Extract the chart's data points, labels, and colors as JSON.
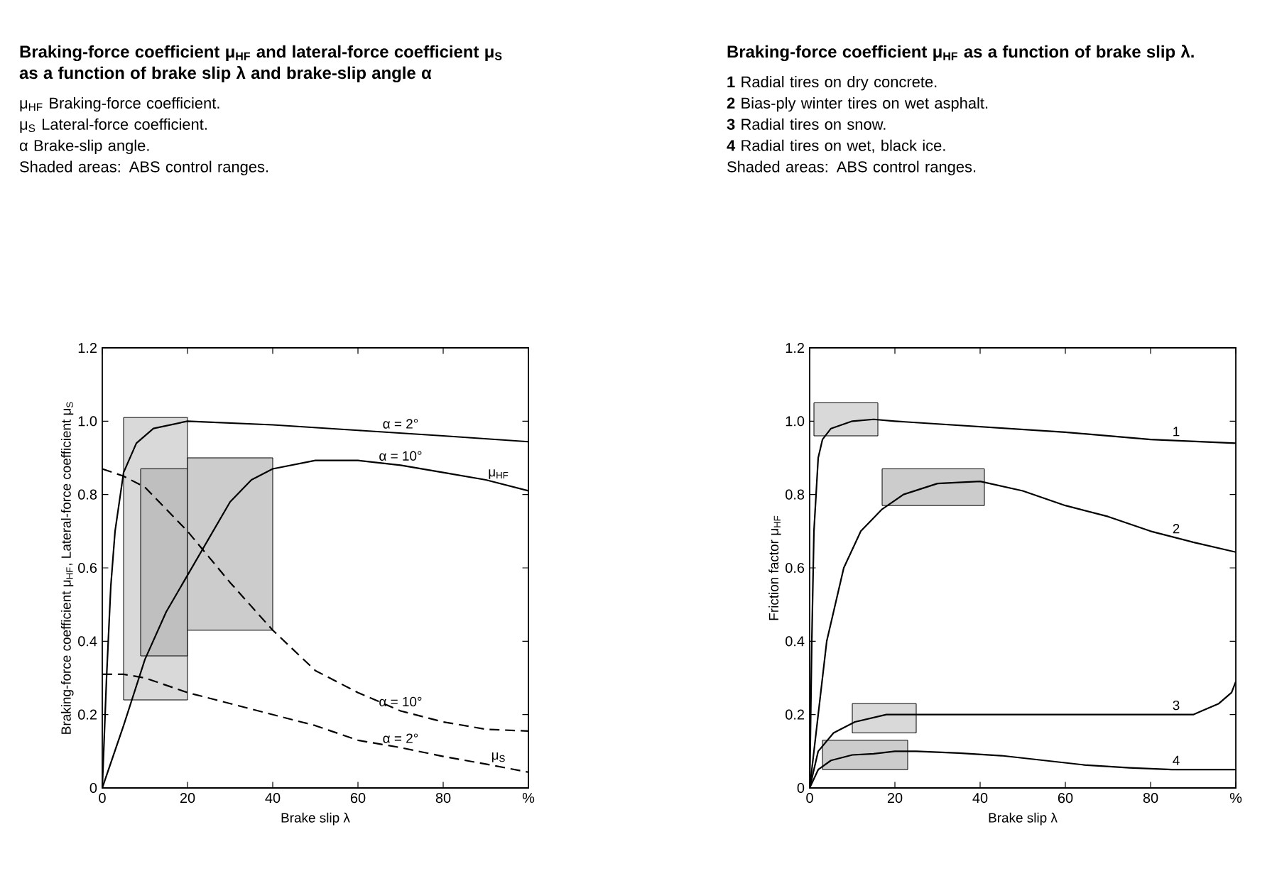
{
  "chart_data": [
    {
      "type": "line",
      "title": "Braking-force coefficient μ$_{HF}$ and lateral-force coefficient μ$_{S}$ as a function of brake slip λ and brake-slip angle α",
      "xlabel": "Brake slip λ",
      "ylabel": "Braking-force coefficient μ$_{HF}$, Lateral-force coefficient μ$_{S}$",
      "xlim": [
        0,
        100
      ],
      "ylim": [
        0,
        1.2
      ],
      "xticks": [
        0,
        20,
        40,
        60,
        80,
        {
          "value": 100,
          "label": "%"
        }
      ],
      "yticks": [
        0,
        0.2,
        0.4,
        0.6,
        0.8,
        {
          "value": 1,
          "label": "1.0"
        },
        1.2
      ],
      "series": [
        {
          "type": "area",
          "color": "#d9d9d9",
          "x": [
            5,
            20
          ],
          "values": [
            null,
            null
          ],
          "lower": [
            0.24,
            0.24
          ],
          "upper": [
            1.01,
            1.01
          ]
        },
        {
          "type": "area",
          "color": "#bfbfbf",
          "x": [
            9,
            20
          ],
          "values": [
            null,
            null
          ],
          "lower": [
            0.36,
            0.36
          ],
          "upper": [
            0.87,
            0.87
          ]
        },
        {
          "type": "area",
          "color": "#cccccc",
          "x": [
            20,
            40
          ],
          "values": [
            null,
            null
          ],
          "lower": [
            0.43,
            0.43
          ],
          "upper": [
            0.9,
            0.9
          ]
        },
        {
          "name": "α = 2°",
          "color": "#000000",
          "line_style": "solid",
          "x": [
            0,
            1,
            2,
            3,
            5,
            8,
            12,
            20,
            40,
            60,
            80,
            100
          ],
          "values": [
            0,
            0.3,
            0.55,
            0.7,
            0.86,
            0.94,
            0.98,
            1.0,
            0.99,
            0.975,
            0.96,
            0.944
          ]
        },
        {
          "name": "α = 10°",
          "color": "#000000",
          "line_style": "solid",
          "x": [
            0,
            5,
            10,
            15,
            20,
            25,
            30,
            35,
            40,
            50,
            60,
            70,
            80,
            90,
            100
          ],
          "values": [
            0,
            0.17,
            0.35,
            0.48,
            0.58,
            0.68,
            0.78,
            0.84,
            0.87,
            0.893,
            0.893,
            0.88,
            0.86,
            0.84,
            0.81
          ]
        },
        {
          "name": "α = 10°",
          "color": "#000000",
          "line_style": "dashed",
          "x": [
            0,
            5,
            10,
            20,
            30,
            40,
            50,
            60,
            70,
            80,
            90,
            100
          ],
          "values": [
            0.87,
            0.85,
            0.82,
            0.7,
            0.56,
            0.43,
            0.32,
            0.26,
            0.21,
            0.18,
            0.16,
            0.155
          ]
        },
        {
          "name": "α = 2°",
          "color": "#000000",
          "line_style": "dashed",
          "x": [
            0,
            5,
            10,
            20,
            30,
            40,
            50,
            60,
            70,
            80,
            90,
            100
          ],
          "values": [
            0.31,
            0.31,
            0.3,
            0.26,
            0.23,
            0.2,
            0.17,
            0.13,
            0.11,
            0.086,
            0.065,
            0.043
          ]
        }
      ],
      "annotations": [
        "μ$_{HF}$ Braking-force coefficient.",
        "μ$_{S}$ Lateral-force coefficient.",
        "α Brake-slip angle.",
        "Shaded areas: ABS control ranges.",
        {
          "text": "μ$_{HF}$",
          "x": 93,
          "y": 0.83
        },
        {
          "text": "μ$_{S}$",
          "x": 93,
          "y": 0.058
        }
      ]
    },
    {
      "type": "line",
      "title": "Braking-force coefficient μ$_{HF}$ as a function of brake slip λ.",
      "xlabel": "Brake slip λ",
      "ylabel": "Friction factor μ$_{HF}$",
      "xlim": [
        0,
        100
      ],
      "ylim": [
        0,
        1.2
      ],
      "xticks": [
        0,
        20,
        40,
        60,
        80,
        {
          "value": 100,
          "label": "%"
        }
      ],
      "yticks": [
        0,
        0.2,
        0.4,
        0.6,
        0.8,
        {
          "value": 1,
          "label": "1.0"
        },
        1.2
      ],
      "series": [
        {
          "type": "area",
          "color": "#d9d9d9",
          "x": [
            1,
            16
          ],
          "values": [
            null,
            null
          ],
          "lower": [
            0.96,
            0.96
          ],
          "upper": [
            1.05,
            1.05
          ]
        },
        {
          "type": "area",
          "color": "#cccccc",
          "x": [
            17,
            41
          ],
          "values": [
            null,
            null
          ],
          "lower": [
            0.77,
            0.77
          ],
          "upper": [
            0.87,
            0.87
          ]
        },
        {
          "type": "area",
          "color": "#d9d9d9",
          "x": [
            10,
            25
          ],
          "values": [
            null,
            null
          ],
          "lower": [
            0.15,
            0.15
          ],
          "upper": [
            0.23,
            0.23
          ]
        },
        {
          "type": "area",
          "color": "#cccccc",
          "x": [
            3,
            23
          ],
          "values": [
            null,
            null
          ],
          "lower": [
            0.05,
            0.05
          ],
          "upper": [
            0.13,
            0.13
          ]
        },
        {
          "name": "1",
          "color": "#000000",
          "line_style": "solid",
          "x": [
            0,
            0.5,
            1,
            2,
            3,
            5,
            10,
            15,
            20,
            40,
            60,
            80,
            100
          ],
          "values": [
            0,
            0.4,
            0.7,
            0.9,
            0.95,
            0.98,
            1.0,
            1.005,
            1.0,
            0.985,
            0.97,
            0.95,
            0.94
          ]
        },
        {
          "name": "2",
          "color": "#000000",
          "line_style": "solid",
          "x": [
            0,
            2,
            4,
            8,
            12,
            17,
            22,
            30,
            40,
            50,
            60,
            70,
            80,
            90,
            100
          ],
          "values": [
            0,
            0.2,
            0.4,
            0.6,
            0.7,
            0.76,
            0.8,
            0.83,
            0.836,
            0.81,
            0.77,
            0.74,
            0.7,
            0.67,
            0.643
          ]
        },
        {
          "name": "3",
          "color": "#000000",
          "line_style": "solid",
          "x": [
            0,
            2,
            5.6,
            10.6,
            18,
            40,
            60,
            85,
            90,
            92,
            96,
            99,
            100
          ],
          "values": [
            0,
            0.1,
            0.15,
            0.18,
            0.2,
            0.2,
            0.2,
            0.2,
            0.2,
            0.21,
            0.23,
            0.26,
            0.29
          ]
        },
        {
          "name": "4",
          "color": "#000000",
          "line_style": "solid",
          "x": [
            0,
            2,
            5,
            10,
            15,
            20,
            25,
            35,
            45,
            55,
            65,
            75,
            85,
            100
          ],
          "values": [
            0,
            0.05,
            0.075,
            0.09,
            0.093,
            0.1,
            0.1,
            0.095,
            0.088,
            0.075,
            0.062,
            0.055,
            0.05,
            0.05
          ]
        }
      ],
      "annotations": [
        "**1** Radial tires on dry concrete.",
        "**2** Bias-ply winter tires on wet asphalt.",
        "**3** Radial tires on snow.",
        "**4** Radial tires on wet, black ice.",
        "Shaded areas: ABS control ranges."
      ]
    }
  ]
}
